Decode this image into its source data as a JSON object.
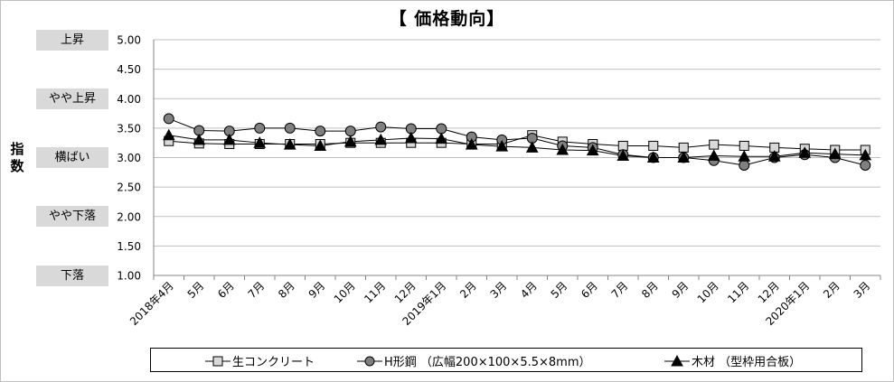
{
  "chart_data": {
    "type": "line",
    "title": "【 価格動向】",
    "ylabel": "指数",
    "ylim": [
      1.0,
      5.0
    ],
    "yticks": [
      "5.00",
      "4.50",
      "4.00",
      "3.50",
      "3.00",
      "2.50",
      "2.00",
      "1.50",
      "1.00"
    ],
    "ytick_values": [
      5.0,
      4.5,
      4.0,
      3.5,
      3.0,
      2.5,
      2.0,
      1.5,
      1.0
    ],
    "y_categories": [
      {
        "label": "上昇",
        "value": 5.0
      },
      {
        "label": "やや上昇",
        "value": 4.0
      },
      {
        "label": "横ばい",
        "value": 3.0
      },
      {
        "label": "やや下落",
        "value": 2.0
      },
      {
        "label": "下落",
        "value": 1.0
      }
    ],
    "categories": [
      "2018年4月",
      "5月",
      "6月",
      "7月",
      "8月",
      "9月",
      "10月",
      "11月",
      "12月",
      "2019年1月",
      "2月",
      "3月",
      "4月",
      "5月",
      "6月",
      "7月",
      "8月",
      "9月",
      "10月",
      "11月",
      "12月",
      "2020年1月",
      "2月",
      "3月"
    ],
    "grid": true,
    "legend_position": "bottom",
    "series": [
      {
        "name": "生コンクリート",
        "marker": "square",
        "color": "#d9d9d9",
        "values": [
          3.28,
          3.24,
          3.23,
          3.23,
          3.23,
          3.23,
          3.25,
          3.25,
          3.25,
          3.25,
          3.23,
          3.23,
          3.38,
          3.27,
          3.23,
          3.2,
          3.2,
          3.17,
          3.22,
          3.2,
          3.17,
          3.15,
          3.13,
          3.13
        ]
      },
      {
        "name": "H形鋼 （広幅200×100×5.5×8mm）",
        "marker": "circle",
        "color": "#808080",
        "values": [
          3.66,
          3.46,
          3.45,
          3.5,
          3.5,
          3.45,
          3.45,
          3.52,
          3.49,
          3.49,
          3.35,
          3.3,
          3.33,
          3.2,
          3.17,
          3.05,
          3.0,
          3.0,
          2.95,
          2.87,
          3.0,
          3.05,
          3.0,
          2.87
        ]
      },
      {
        "name": "木材 （型枠用合板）",
        "marker": "triangle",
        "color": "#000000",
        "values": [
          3.38,
          3.3,
          3.3,
          3.25,
          3.22,
          3.2,
          3.27,
          3.3,
          3.33,
          3.32,
          3.22,
          3.19,
          3.17,
          3.13,
          3.12,
          3.03,
          3.0,
          3.0,
          3.03,
          3.02,
          3.02,
          3.08,
          3.06,
          3.04
        ]
      }
    ]
  }
}
